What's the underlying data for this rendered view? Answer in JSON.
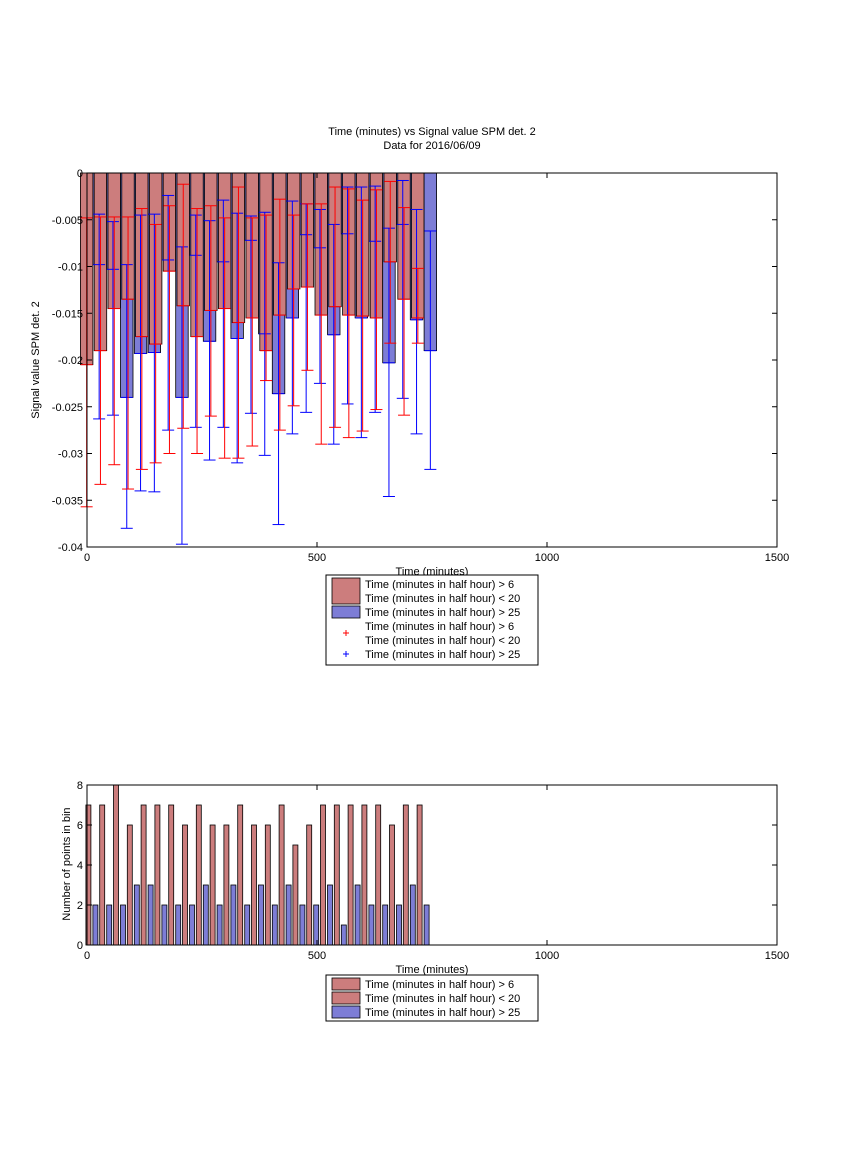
{
  "chart_data": [
    {
      "type": "bar",
      "title": "Time (minutes) vs Signal value SPM det. 2",
      "subtitle": "Data for 2016/06/09",
      "xlabel": "Time (minutes)",
      "ylabel": "Signal value SPM det. 2",
      "xlim": [
        0,
        1500
      ],
      "ylim": [
        -0.04,
        0
      ],
      "xticks": [
        0,
        500,
        1000,
        1500
      ],
      "xtick_labels": [
        "0",
        "500",
        "1000",
        "1500"
      ],
      "yticks": [
        -0.04,
        -0.035,
        -0.03,
        -0.025,
        -0.02,
        -0.015,
        -0.01,
        -0.005,
        0
      ],
      "ytick_labels": [
        "-0.04",
        "-0.035",
        "-0.03",
        "-0.025",
        "-0.02",
        "-0.015",
        "-0.01",
        "-0.005",
        "0"
      ],
      "grid": false,
      "legend_position": "below",
      "bar_colors": [
        "#cc7d7d",
        "#7d7dd6"
      ],
      "errorbar_colors": [
        "#ff0000",
        "#0000ff"
      ],
      "legend": [
        {
          "kind": "bar",
          "color": "#cc7d7d",
          "lines": [
            "Time (minutes in half hour) > 6",
            "Time (minutes in half hour) < 20"
          ]
        },
        {
          "kind": "bar",
          "color": "#7d7dd6",
          "lines": [
            "Time (minutes in half hour) > 25"
          ]
        },
        {
          "kind": "marker",
          "color": "#ff0000",
          "lines": [
            "Time (minutes in half hour) > 6",
            "Time (minutes in half hour) < 20"
          ]
        },
        {
          "kind": "marker",
          "color": "#0000ff",
          "lines": [
            "Time (minutes in half hour) > 25"
          ]
        }
      ],
      "x": [
        15,
        45,
        75,
        105,
        135,
        165,
        195,
        225,
        255,
        285,
        315,
        345,
        375,
        405,
        435,
        465,
        495,
        525,
        555,
        585,
        615,
        645,
        675,
        705,
        735
      ],
      "series": [
        {
          "name": "Time (minutes in half hour) > 6 Time (minutes in half hour) < 20",
          "values": [
            -0.0205,
            -0.019,
            -0.0145,
            -0.0135,
            -0.0175,
            -0.0183,
            -0.0105,
            -0.0142,
            -0.0175,
            -0.0147,
            -0.0145,
            -0.016,
            -0.0155,
            -0.019,
            -0.0152,
            -0.0124,
            -0.0122,
            -0.0152,
            -0.0143,
            -0.0152,
            -0.0153,
            -0.0155,
            -0.0095,
            -0.0135,
            -0.0155
          ],
          "err_low": [
            -0.0357,
            -0.0333,
            -0.0312,
            -0.0338,
            -0.0317,
            -0.031,
            -0.03,
            -0.0273,
            -0.03,
            -0.026,
            -0.0305,
            -0.0305,
            -0.0292,
            -0.0222,
            -0.0275,
            -0.0249,
            -0.0211,
            -0.029,
            -0.0272,
            -0.0283,
            -0.0276,
            -0.0253,
            -0.0182,
            -0.0259,
            -0.0182
          ],
          "err_high": [
            -0.0048,
            -0.0047,
            -0.0047,
            -0.0047,
            -0.0038,
            -0.0055,
            -0.0035,
            -0.0012,
            -0.0038,
            -0.0035,
            -0.0048,
            -0.0015,
            -0.0048,
            -0.0045,
            -0.0028,
            -0.0045,
            -0.0033,
            -0.0033,
            -0.0015,
            -0.0017,
            -0.0029,
            -0.0018,
            -0.0009,
            -0.0037,
            -0.0102
          ]
        },
        {
          "name": "Time (minutes in half hour) > 25",
          "values": [
            -0.0098,
            -0.0103,
            -0.024,
            -0.0193,
            -0.0192,
            -0.0093,
            -0.024,
            -0.0088,
            -0.018,
            -0.0095,
            -0.0177,
            -0.0072,
            -0.0172,
            -0.0236,
            -0.0155,
            -0.0066,
            -0.008,
            -0.0173,
            -0.0065,
            -0.0155,
            -0.0073,
            -0.0203,
            -0.0055,
            -0.0157,
            -0.019
          ],
          "err_low": [
            -0.0263,
            -0.0259,
            -0.038,
            -0.034,
            -0.0341,
            -0.0275,
            -0.0397,
            -0.0272,
            -0.0307,
            -0.0272,
            -0.031,
            -0.0257,
            -0.0302,
            -0.0376,
            -0.0279,
            -0.0256,
            -0.0225,
            -0.029,
            -0.0247,
            -0.0283,
            -0.0256,
            -0.0346,
            -0.0241,
            -0.0279,
            -0.0317
          ],
          "err_high": [
            -0.0044,
            -0.0052,
            -0.0098,
            -0.0045,
            -0.0044,
            -0.0024,
            -0.0079,
            -0.0045,
            -0.0051,
            -0.0029,
            -0.0043,
            -0.0046,
            -0.0042,
            -0.0096,
            -0.003,
            -0.0033,
            -0.0039,
            -0.0055,
            -0.0015,
            -0.0015,
            -0.0014,
            -0.0059,
            -0.0008,
            -0.0039,
            -0.0062
          ]
        }
      ]
    },
    {
      "type": "bar",
      "xlabel": "Time (minutes)",
      "ylabel": "Number of points in bin",
      "xlim": [
        0,
        1500
      ],
      "ylim": [
        0,
        8
      ],
      "xticks": [
        0,
        500,
        1000,
        1500
      ],
      "xtick_labels": [
        "0",
        "500",
        "1000",
        "1500"
      ],
      "yticks": [
        0,
        2,
        4,
        6,
        8
      ],
      "ytick_labels": [
        "0",
        "2",
        "4",
        "6",
        "8"
      ],
      "grid": false,
      "legend_position": "below",
      "bar_colors": [
        "#cc7d7d",
        "#7d7dd6"
      ],
      "legend": [
        {
          "kind": "bar",
          "color": "#cc7d7d",
          "lines": [
            "Time (minutes in half hour) > 6"
          ]
        },
        {
          "kind": "bar",
          "color": "#cc7d7d",
          "lines": [
            "Time (minutes in half hour) < 20"
          ]
        },
        {
          "kind": "bar",
          "color": "#7d7dd6",
          "lines": [
            "Time (minutes in half hour) > 25"
          ]
        }
      ],
      "x": [
        15,
        45,
        75,
        105,
        135,
        165,
        195,
        225,
        255,
        285,
        315,
        345,
        375,
        405,
        435,
        465,
        495,
        525,
        555,
        585,
        615,
        645,
        675,
        705,
        735
      ],
      "series": [
        {
          "name": "Time (minutes in half hour) > 6 Time (minutes in half hour) < 20",
          "values": [
            7,
            7,
            8,
            6,
            7,
            7,
            7,
            6,
            7,
            6,
            6,
            7,
            6,
            6,
            7,
            5,
            6,
            7,
            7,
            7,
            7,
            7,
            6,
            7,
            7
          ]
        },
        {
          "name": "Time (minutes in half hour) > 25",
          "values": [
            2,
            2,
            2,
            3,
            3,
            2,
            2,
            2,
            3,
            2,
            3,
            2,
            3,
            2,
            3,
            2,
            2,
            3,
            1,
            3,
            2,
            2,
            2,
            3,
            2
          ]
        }
      ]
    }
  ]
}
